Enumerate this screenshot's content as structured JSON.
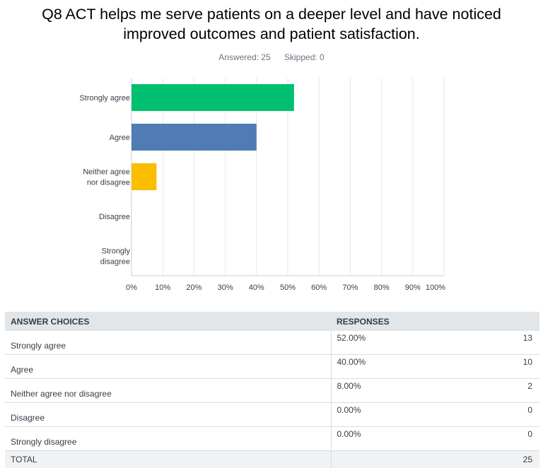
{
  "question": {
    "title_line1": "Q8 ACT helps me serve patients on a deeper level and have noticed",
    "title_line2": "improved outcomes and patient satisfaction.",
    "answered": "Answered: 25",
    "skipped": "Skipped: 0"
  },
  "chart_data": {
    "type": "bar",
    "orientation": "horizontal",
    "categories": [
      [
        "Strongly agree"
      ],
      [
        "Agree"
      ],
      [
        "Neither agree",
        "nor disagree"
      ],
      [
        "Disagree"
      ],
      [
        "Strongly",
        "disagree"
      ]
    ],
    "values": [
      52,
      40,
      8,
      0,
      0
    ],
    "colors": [
      "#00bf6f",
      "#507cb6",
      "#f9be00",
      "#6bc8cd",
      "#ff8b4f"
    ],
    "x_ticks": [
      "0%",
      "10%",
      "20%",
      "30%",
      "40%",
      "50%",
      "60%",
      "70%",
      "80%",
      "90%",
      "100%"
    ],
    "xlim": [
      0,
      100
    ],
    "grid": true
  },
  "table": {
    "headers": [
      "ANSWER CHOICES",
      "RESPONSES",
      ""
    ],
    "rows": [
      {
        "choice": "Strongly agree",
        "pct": "52.00%",
        "count": "13"
      },
      {
        "choice": "Agree",
        "pct": "40.00%",
        "count": "10"
      },
      {
        "choice": "Neither agree nor disagree",
        "pct": "8.00%",
        "count": "2"
      },
      {
        "choice": "Disagree",
        "pct": "0.00%",
        "count": "0"
      },
      {
        "choice": "Strongly disagree",
        "pct": "0.00%",
        "count": "0"
      }
    ],
    "total_label": "TOTAL",
    "total_count": "25"
  }
}
